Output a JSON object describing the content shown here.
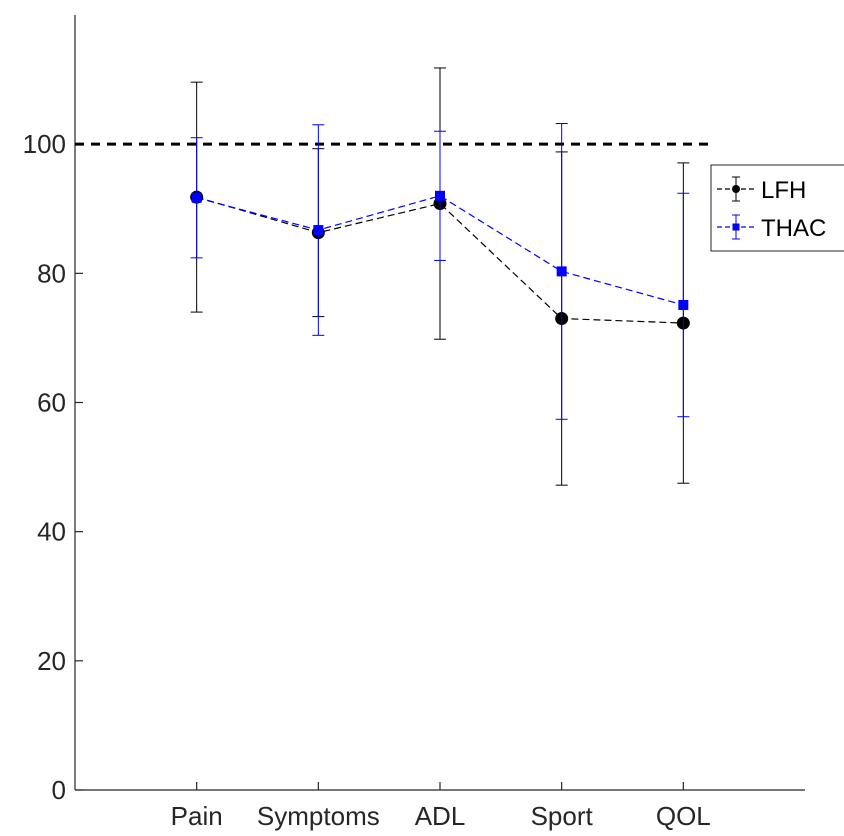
{
  "chart_data": {
    "type": "line",
    "title": "",
    "xlabel": "",
    "ylabel": "",
    "categories": [
      "Pain",
      "Symptoms",
      "ADL",
      "Sport",
      "QOL"
    ],
    "ylim": [
      0,
      120
    ],
    "yticks": [
      0,
      20,
      40,
      60,
      80,
      100
    ],
    "x_positions": [
      1,
      2,
      3,
      4,
      5
    ],
    "xlim": [
      -0.0,
      6.0
    ],
    "grid": false,
    "legend_position": "right",
    "reference_line": {
      "y": 100,
      "style": "dashed",
      "color": "#000000"
    },
    "series": [
      {
        "name": "LFH",
        "color": "#000000",
        "marker": "circle",
        "values": [
          91.8,
          86.3,
          90.8,
          73.0,
          72.3
        ],
        "lower": [
          74.0,
          73.3,
          69.8,
          47.2,
          47.5
        ],
        "upper": [
          109.6,
          99.3,
          111.8,
          98.8,
          97.1
        ]
      },
      {
        "name": "THAC",
        "color": "#0000ff",
        "marker": "square",
        "values": [
          91.7,
          86.7,
          92.0,
          80.3,
          75.1
        ],
        "lower": [
          82.4,
          70.4,
          82.0,
          57.4,
          57.8
        ],
        "upper": [
          101.0,
          103.0,
          102.0,
          103.2,
          92.4
        ]
      }
    ]
  }
}
